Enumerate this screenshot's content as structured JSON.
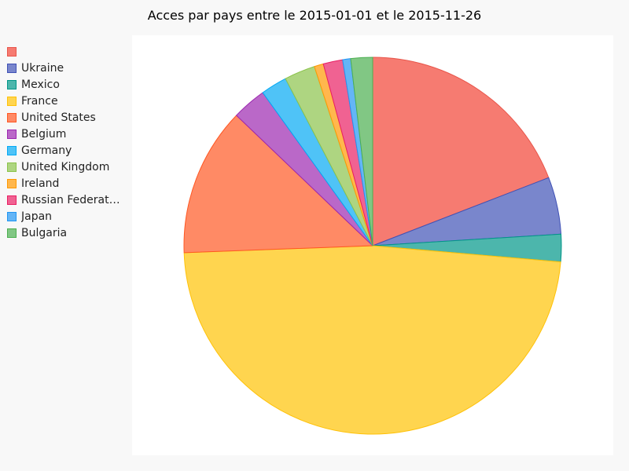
{
  "chart_data": {
    "type": "pie",
    "title": "Acces par pays entre le 2015-01-01 et le 2015-11-26",
    "legend_position": "left",
    "start_angle_deg": 0,
    "direction": "clockwise",
    "slices": [
      {
        "label": "",
        "value": 19.5,
        "color": "#f67b71",
        "stroke": "#e8554a"
      },
      {
        "label": "Ukraine",
        "value": 5.0,
        "color": "#7986cc",
        "stroke": "#3f51b5"
      },
      {
        "label": "Mexico",
        "value": 2.4,
        "color": "#4cb6ac",
        "stroke": "#009688"
      },
      {
        "label": "France",
        "value": 49.0,
        "color": "#ffd54f",
        "stroke": "#ffc107"
      },
      {
        "label": "United States",
        "value": 13.0,
        "color": "#ff8a65",
        "stroke": "#ff5722"
      },
      {
        "label": "Belgium",
        "value": 3.0,
        "color": "#ba68c8",
        "stroke": "#9c27b0"
      },
      {
        "label": "Germany",
        "value": 2.3,
        "color": "#4fc3f7",
        "stroke": "#03a9f4"
      },
      {
        "label": "United Kingdom",
        "value": 2.7,
        "color": "#aed581",
        "stroke": "#8bc34a"
      },
      {
        "label": "Ireland",
        "value": 0.8,
        "color": "#ffb74d",
        "stroke": "#ff9800"
      },
      {
        "label": "Russian Federation",
        "value": 1.7,
        "color": "#f06292",
        "stroke": "#e91e63"
      },
      {
        "label": "Japan",
        "value": 0.7,
        "color": "#64b5f6",
        "stroke": "#2196f3"
      },
      {
        "label": "Bulgaria",
        "value": 1.9,
        "color": "#81c784",
        "stroke": "#4caf50"
      }
    ]
  }
}
